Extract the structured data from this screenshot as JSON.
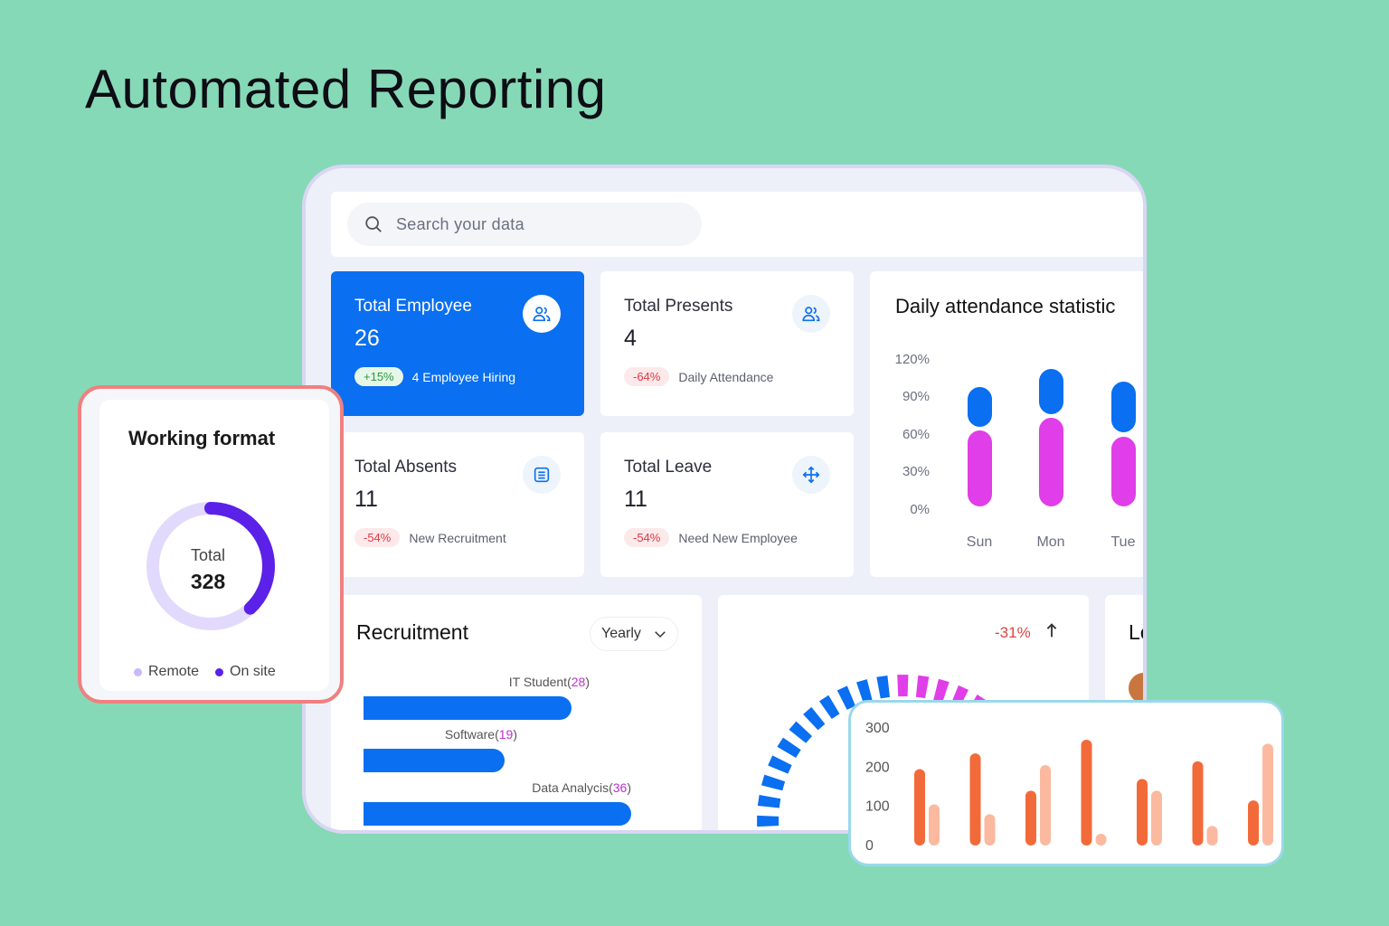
{
  "hero": {
    "title": "Automated Reporting"
  },
  "search": {
    "placeholder": "Search your data"
  },
  "stats": [
    {
      "title": "Total Employee",
      "value": "26",
      "badge": "+15%",
      "note": "4 Employee Hiring",
      "icon": "users-icon"
    },
    {
      "title": "Total Presents",
      "value": "4",
      "badge": "-64%",
      "note": "Daily Attendance",
      "icon": "users-icon"
    },
    {
      "title": "Total Absents",
      "value": "11",
      "badge": "-54%",
      "note": "New Recruitment",
      "icon": "list-icon"
    },
    {
      "title": "Total Leave",
      "value": "11",
      "badge": "-54%",
      "note": "Need New Employee",
      "icon": "move-icon"
    }
  ],
  "attendance": {
    "title": "Daily attendance statistic",
    "ticks": [
      "120%",
      "90%",
      "60%",
      "30%",
      "0%"
    ],
    "days": [
      "Sun",
      "Mon",
      "Tue"
    ],
    "colors": {
      "top": "#0a6ff0",
      "bottom": "#e03ee8"
    }
  },
  "recruitment": {
    "title": "Recruitment",
    "period": "Yearly",
    "items": [
      {
        "name": "IT Student",
        "count": "28",
        "value": 28
      },
      {
        "name": "Software",
        "count": "19",
        "value": 19
      },
      {
        "name": "Data Analycis",
        "count": "36",
        "value": 36
      }
    ]
  },
  "gauge": {
    "delta": "-31%",
    "colors": {
      "main": "#0a6ff0",
      "accent": "#e03ee8"
    }
  },
  "leaves": {
    "title": "Le"
  },
  "working_format": {
    "title": "Working format",
    "total_label": "Total",
    "total": "328",
    "legend": [
      {
        "label": "Remote",
        "color": "#c9b9f5"
      },
      {
        "label": "On site",
        "color": "#5b21e8"
      }
    ],
    "onsite_fraction": 0.38
  },
  "chart_data": {
    "type": "bar",
    "ylim": [
      0,
      300
    ],
    "yticks": [
      "300",
      "200",
      "100",
      "0"
    ],
    "series": [
      {
        "values": [
          195,
          235,
          140,
          270,
          170,
          215,
          115
        ]
      },
      {
        "values": [
          105,
          80,
          205,
          30,
          140,
          50,
          260
        ]
      }
    ],
    "colors": [
      "#f26a3a",
      "#fbb9a0"
    ]
  }
}
